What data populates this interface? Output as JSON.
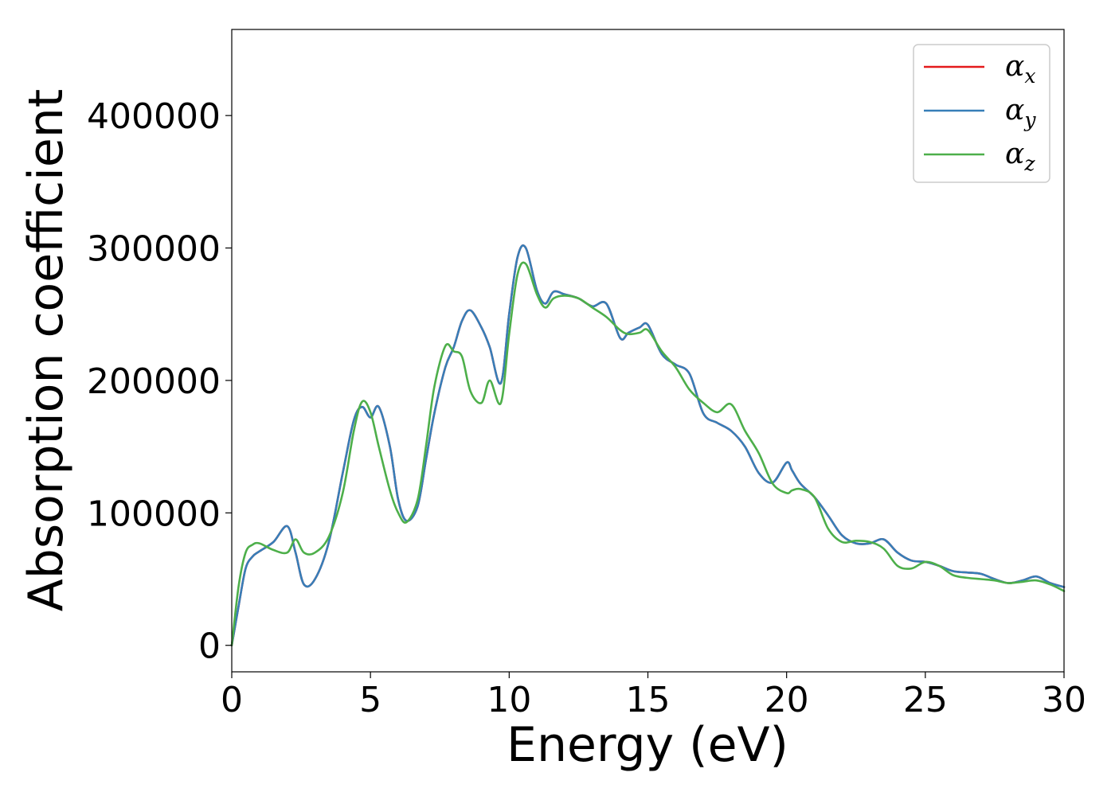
{
  "chart_data": {
    "type": "line",
    "xlabel": "Energy (eV)",
    "ylabel": "Absorption coefficient",
    "xlim": [
      0,
      30
    ],
    "ylim": [
      -20000,
      465000
    ],
    "x_ticks": [
      0,
      5,
      10,
      15,
      20,
      25,
      30
    ],
    "x_tick_labels": [
      "0",
      "5",
      "10",
      "15",
      "20",
      "25",
      "30"
    ],
    "y_ticks": [
      0,
      100000,
      200000,
      300000,
      400000
    ],
    "y_tick_labels": [
      "0",
      "100000",
      "200000",
      "300000",
      "400000"
    ],
    "grid": false,
    "legend_position": "top-right",
    "x": [
      0,
      0.25,
      0.5,
      0.75,
      1,
      1.5,
      2,
      2.3,
      2.6,
      3,
      3.5,
      4,
      4.4,
      4.7,
      5,
      5.3,
      5.7,
      6,
      6.3,
      6.7,
      7,
      7.3,
      7.7,
      8,
      8.3,
      8.6,
      9,
      9.3,
      9.7,
      10,
      10.3,
      10.6,
      11,
      11.3,
      11.6,
      12,
      12.5,
      13,
      13.5,
      14,
      14.3,
      14.7,
      15,
      15.5,
      16,
      16.5,
      17,
      17.5,
      18,
      18.5,
      19,
      19.5,
      20,
      20.2,
      20.5,
      21,
      21.5,
      22,
      22.5,
      23,
      23.5,
      24,
      24.5,
      25,
      25.5,
      26,
      26.5,
      27,
      27.5,
      28,
      28.5,
      29,
      29.5,
      30
    ],
    "series": [
      {
        "name": "α_x",
        "color": "#e41a1c",
        "values": [
          0,
          30000,
          58000,
          67000,
          71000,
          78000,
          90000,
          70000,
          46000,
          50000,
          78000,
          130000,
          170000,
          180000,
          172000,
          180000,
          150000,
          110000,
          94000,
          105000,
          140000,
          175000,
          210000,
          225000,
          245000,
          253000,
          240000,
          225000,
          198000,
          250000,
          293000,
          300000,
          268000,
          258000,
          267000,
          265000,
          262000,
          256000,
          258000,
          232000,
          236000,
          240000,
          242000,
          220000,
          212000,
          205000,
          175000,
          168000,
          162000,
          150000,
          130000,
          123000,
          138000,
          132000,
          122000,
          112000,
          98000,
          83000,
          77000,
          77000,
          80000,
          70000,
          64000,
          63000,
          60000,
          56000,
          55000,
          54000,
          50000,
          47000,
          49000,
          52000,
          47000,
          44000
        ]
      },
      {
        "name": "α_y",
        "color": "#377eb8",
        "values": [
          0,
          30000,
          58000,
          67000,
          71000,
          78000,
          90000,
          70000,
          46000,
          50000,
          78000,
          130000,
          170000,
          180000,
          172000,
          180000,
          150000,
          110000,
          94000,
          105000,
          140000,
          175000,
          210000,
          225000,
          245000,
          253000,
          240000,
          225000,
          198000,
          250000,
          293000,
          300000,
          268000,
          258000,
          267000,
          265000,
          262000,
          256000,
          258000,
          232000,
          236000,
          240000,
          242000,
          220000,
          212000,
          205000,
          175000,
          168000,
          162000,
          150000,
          130000,
          123000,
          138000,
          132000,
          122000,
          112000,
          98000,
          83000,
          77000,
          77000,
          80000,
          70000,
          64000,
          63000,
          60000,
          56000,
          55000,
          54000,
          50000,
          47000,
          49000,
          52000,
          47000,
          44000
        ]
      },
      {
        "name": "α_z",
        "color": "#4daf4a",
        "values": [
          0,
          45000,
          70000,
          76000,
          77000,
          72000,
          70000,
          80000,
          70000,
          70000,
          82000,
          115000,
          162000,
          184000,
          176000,
          150000,
          117000,
          100000,
          93000,
          110000,
          150000,
          195000,
          226000,
          222000,
          218000,
          192000,
          183000,
          200000,
          183000,
          235000,
          280000,
          288000,
          265000,
          255000,
          262000,
          264000,
          262000,
          255000,
          248000,
          238000,
          235000,
          236000,
          238000,
          222000,
          210000,
          193000,
          183000,
          176000,
          182000,
          162000,
          145000,
          122000,
          115000,
          117000,
          118000,
          112000,
          88000,
          78000,
          79000,
          78000,
          73000,
          60000,
          58000,
          63000,
          60000,
          53000,
          51000,
          50000,
          49000,
          47000,
          48000,
          49000,
          46000,
          41000
        ]
      }
    ]
  }
}
